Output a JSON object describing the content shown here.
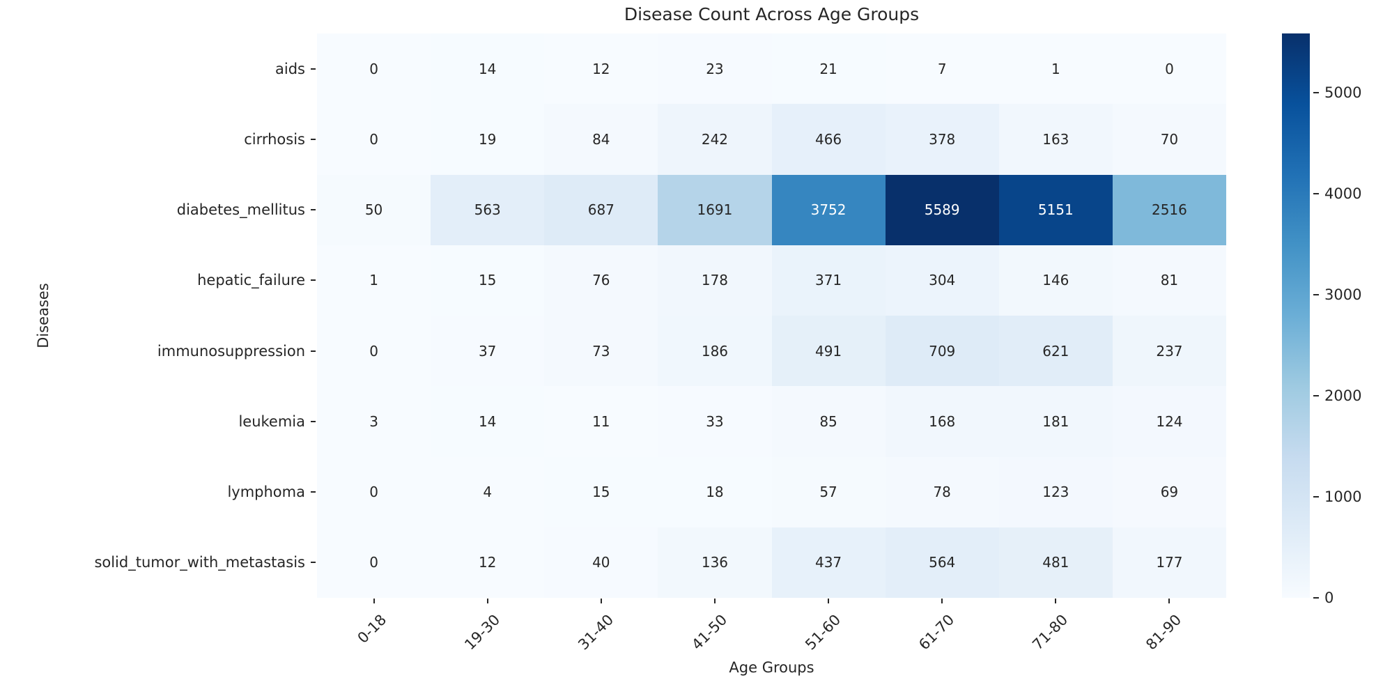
{
  "chart_data": {
    "type": "heatmap",
    "title": "Disease Count Across Age Groups",
    "xlabel": "Age Groups",
    "ylabel": "Diseases",
    "x_categories": [
      "0-18",
      "19-30",
      "31-40",
      "41-50",
      "51-60",
      "61-70",
      "71-80",
      "81-90"
    ],
    "y_categories": [
      "aids",
      "cirrhosis",
      "diabetes_mellitus",
      "hepatic_failure",
      "immunosuppression",
      "leukemia",
      "lymphoma",
      "solid_tumor_with_metastasis"
    ],
    "values": [
      [
        0,
        14,
        12,
        23,
        21,
        7,
        1,
        0
      ],
      [
        0,
        19,
        84,
        242,
        466,
        378,
        163,
        70
      ],
      [
        50,
        563,
        687,
        1691,
        3752,
        5589,
        5151,
        2516
      ],
      [
        1,
        15,
        76,
        178,
        371,
        304,
        146,
        81
      ],
      [
        0,
        37,
        73,
        186,
        491,
        709,
        621,
        237
      ],
      [
        3,
        14,
        11,
        33,
        85,
        168,
        181,
        124
      ],
      [
        0,
        4,
        15,
        18,
        57,
        78,
        123,
        69
      ],
      [
        0,
        12,
        40,
        136,
        437,
        564,
        481,
        177
      ]
    ],
    "vmin": 0,
    "vmax": 5589,
    "colormap": "Blues",
    "colorbar_ticks": [
      0,
      1000,
      2000,
      3000,
      4000,
      5000
    ],
    "annotated": true,
    "grid": false,
    "legend_position": "right-colorbar",
    "xtick_rotation": 45
  },
  "colors": {
    "background": "#ffffff",
    "text": "#262626",
    "annotation_light": "#ffffff",
    "annotation_dark": "#262626",
    "colormap_stops": [
      "#f7fbff",
      "#deebf7",
      "#c6dbef",
      "#9ecae1",
      "#6baed6",
      "#4292c6",
      "#2171b5",
      "#08519c",
      "#08306b"
    ]
  }
}
